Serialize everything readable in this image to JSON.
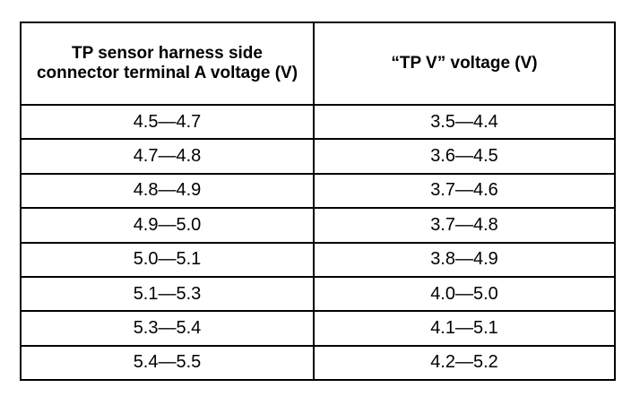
{
  "table": {
    "header": [
      "TP sensor harness side connector terminal A voltage (V)",
      "“TP V” voltage (V)"
    ],
    "rows": [
      [
        "4.5—4.7",
        "3.5—4.4"
      ],
      [
        "4.7—4.8",
        "3.6—4.5"
      ],
      [
        "4.8—4.9",
        "3.7—4.6"
      ],
      [
        "4.9—5.0",
        "3.7—4.8"
      ],
      [
        "5.0—5.1",
        "3.8—4.9"
      ],
      [
        "5.1—5.3",
        "4.0—5.0"
      ],
      [
        "5.3—5.4",
        "4.1—5.1"
      ],
      [
        "5.4—5.5",
        "4.2—5.2"
      ]
    ]
  }
}
